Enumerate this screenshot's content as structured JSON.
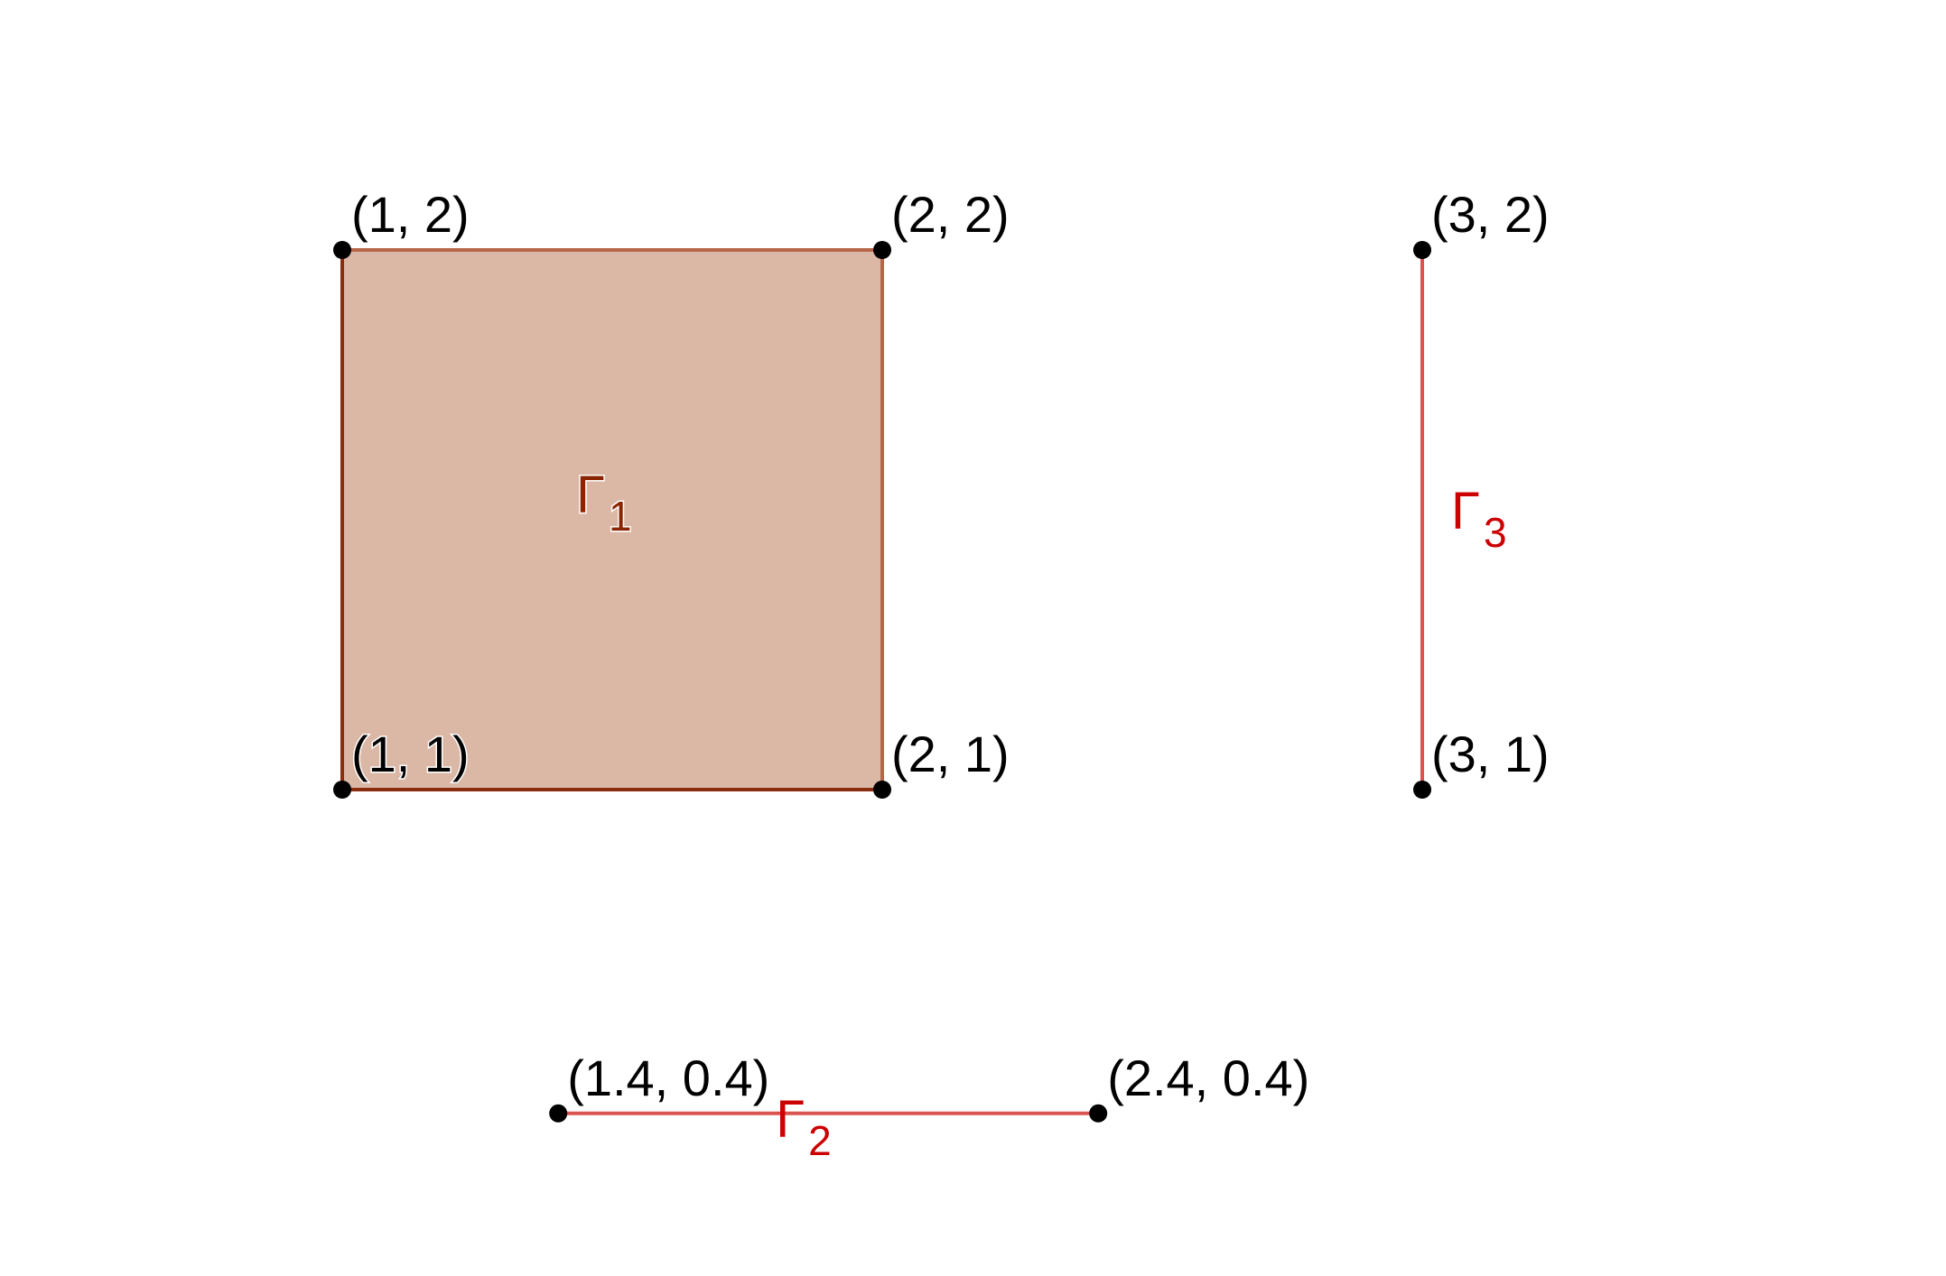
{
  "colors": {
    "square_fill": "#dbb8a6",
    "square_stroke_dark": "#8b2e10",
    "square_stroke_light": "#b8664a",
    "segment_stroke": "#d9534f",
    "gamma1_label": "#8b2500",
    "gamma_red_label": "#cc0000",
    "point": "#000000"
  },
  "shapes": {
    "square": {
      "name": "Γ",
      "subscript": "1",
      "vertices": [
        {
          "x": 1,
          "y": 2,
          "label": "(1, 2)"
        },
        {
          "x": 2,
          "y": 2,
          "label": "(2, 2)"
        },
        {
          "x": 1,
          "y": 1,
          "label": "(1, 1)"
        },
        {
          "x": 2,
          "y": 1,
          "label": "(2, 1)"
        }
      ]
    },
    "segment_vertical": {
      "name": "Γ",
      "subscript": "3",
      "endpoints": [
        {
          "x": 3,
          "y": 2,
          "label": "(3, 2)"
        },
        {
          "x": 3,
          "y": 1,
          "label": "(3, 1)"
        }
      ]
    },
    "segment_horizontal": {
      "name": "Γ",
      "subscript": "2",
      "endpoints": [
        {
          "x": 1.4,
          "y": 0.4,
          "label": "(1.4, 0.4)"
        },
        {
          "x": 2.4,
          "y": 0.4,
          "label": "(2.4, 0.4)"
        }
      ]
    }
  }
}
